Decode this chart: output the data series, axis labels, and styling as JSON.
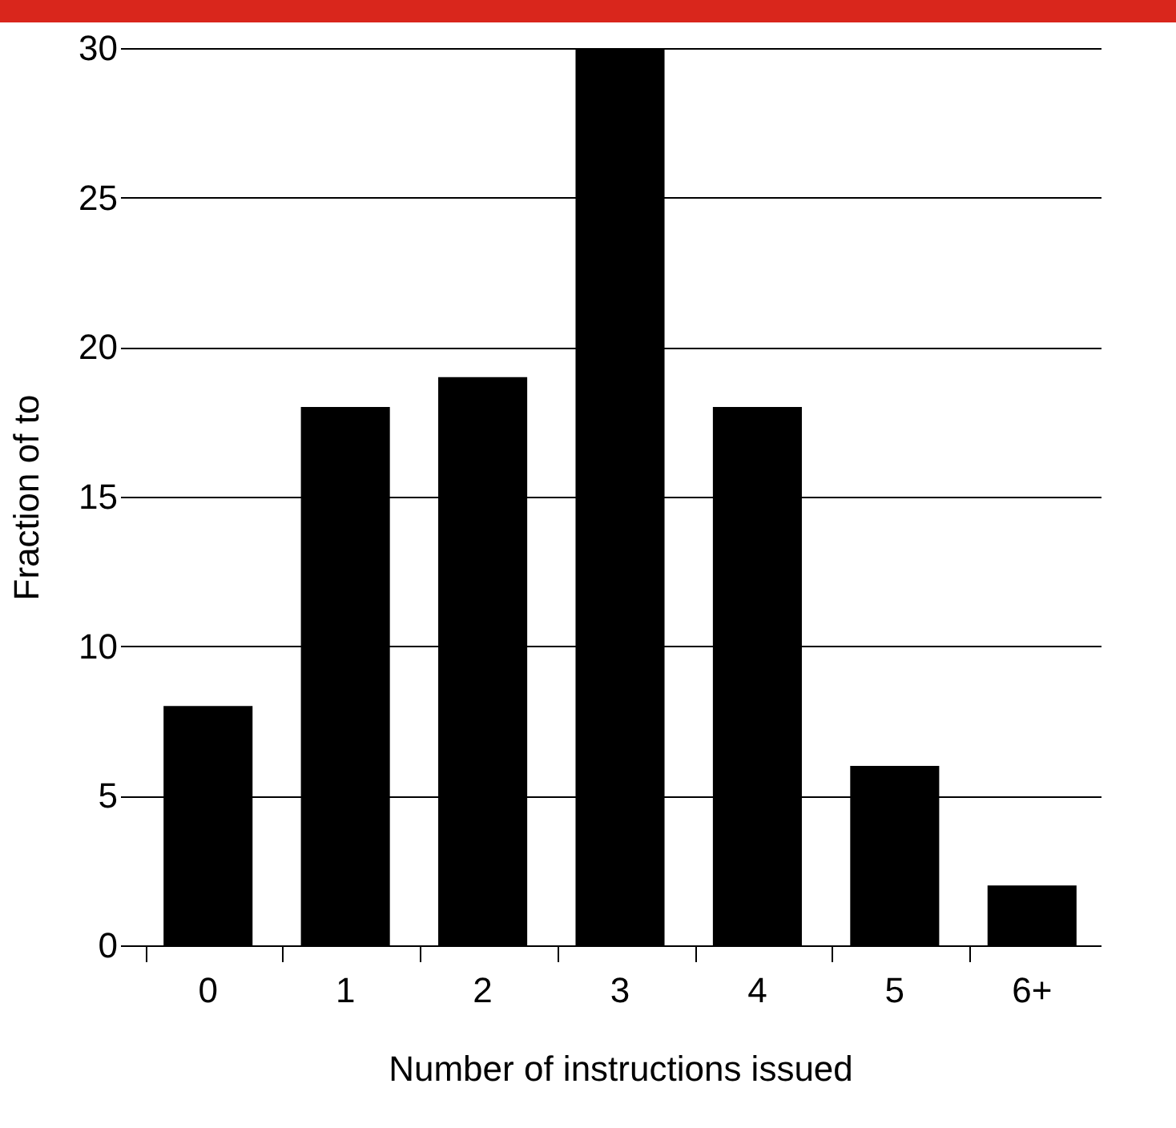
{
  "chart_data": {
    "type": "bar",
    "xlabel": "Number of instructions issued",
    "ylabel": "Fraction of to",
    "categories": [
      "0",
      "1",
      "2",
      "3",
      "4",
      "5",
      "6+"
    ],
    "values": [
      8,
      18,
      19,
      30,
      18,
      6,
      2
    ],
    "color": "#000000",
    "ylim": [
      0,
      30
    ],
    "yticks": [
      0,
      5,
      10,
      15,
      20,
      25,
      30
    ],
    "grid": "y"
  }
}
